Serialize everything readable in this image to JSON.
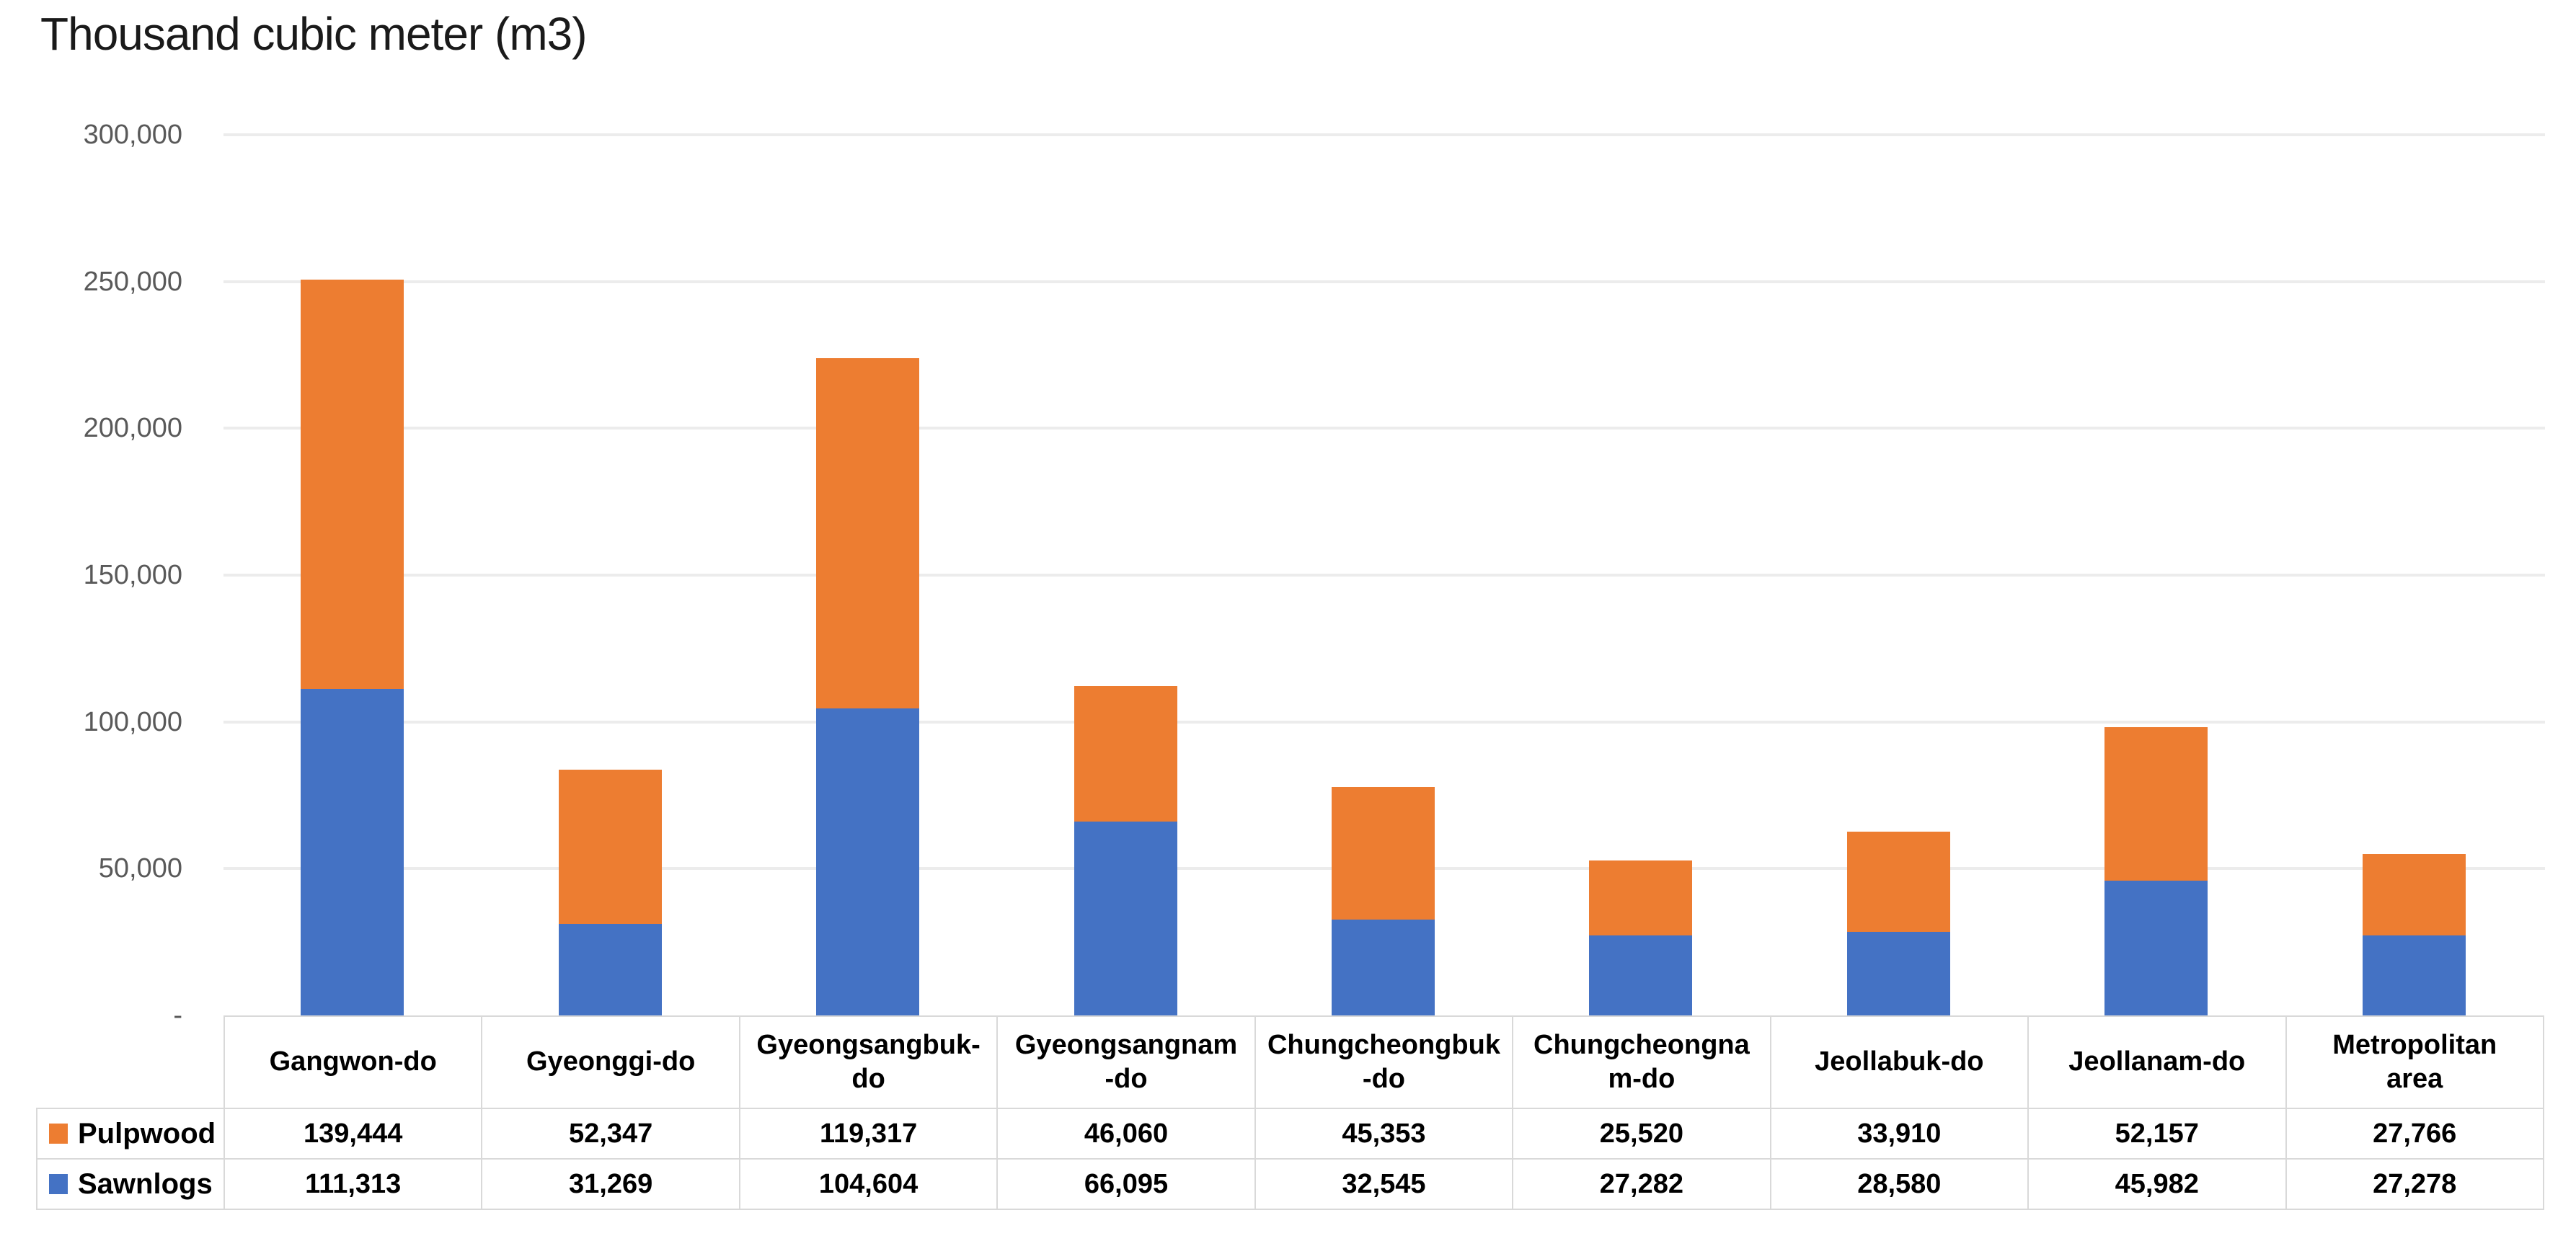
{
  "chart": {
    "title": "Thousand cubic meter (m3)"
  },
  "chart_data": {
    "type": "bar",
    "stacked": true,
    "title": "Thousand cubic meter (m3)",
    "categories": [
      "Gangwon-do",
      "Gyeonggi-do",
      "Gyeongsangbuk-do",
      "Gyeongsangnam-do",
      "Chungcheongbuk-do",
      "Chungcheongnam-do",
      "Jeollabuk-do",
      "Jeollanam-do",
      "Metropolitan area"
    ],
    "category_display": [
      "Gangwon-do",
      "Gyeonggi-do",
      "Gyeongsangbuk-\ndo",
      "Gyeongsangnam\n-do",
      "Chungcheongbuk\n-do",
      "Chungcheongna\nm-do",
      "Jeollabuk-do",
      "Jeollanam-do",
      "Metropolitan\narea"
    ],
    "series": [
      {
        "name": "Pulpwood",
        "color": "#ED7D31",
        "values": [
          139444,
          52347,
          119317,
          46060,
          45353,
          25520,
          33910,
          52157,
          27766
        ]
      },
      {
        "name": "Sawnlogs",
        "color": "#4472C4",
        "values": [
          111313,
          31269,
          104604,
          66095,
          32545,
          27282,
          28580,
          45982,
          27278
        ]
      }
    ],
    "stack_order_bottom_to_top": [
      "Sawnlogs",
      "Pulpwood"
    ],
    "y_axis": {
      "min": 0,
      "max": 300000,
      "step": 50000,
      "tick_labels": [
        "300,000",
        "250,000",
        "200,000",
        "150,000",
        "100,000",
        "50,000",
        "-"
      ]
    },
    "grid": true,
    "legend_position": "data-table-left",
    "data_table_shown": true
  },
  "colors": {
    "pulpwood": "#ED7D31",
    "sawnlogs": "#4472C4",
    "gridline": "#ECECEC",
    "axis_text": "#595959",
    "table_border": "#D9D9D9",
    "table_text": "#000000",
    "background": "#FFFFFF"
  }
}
